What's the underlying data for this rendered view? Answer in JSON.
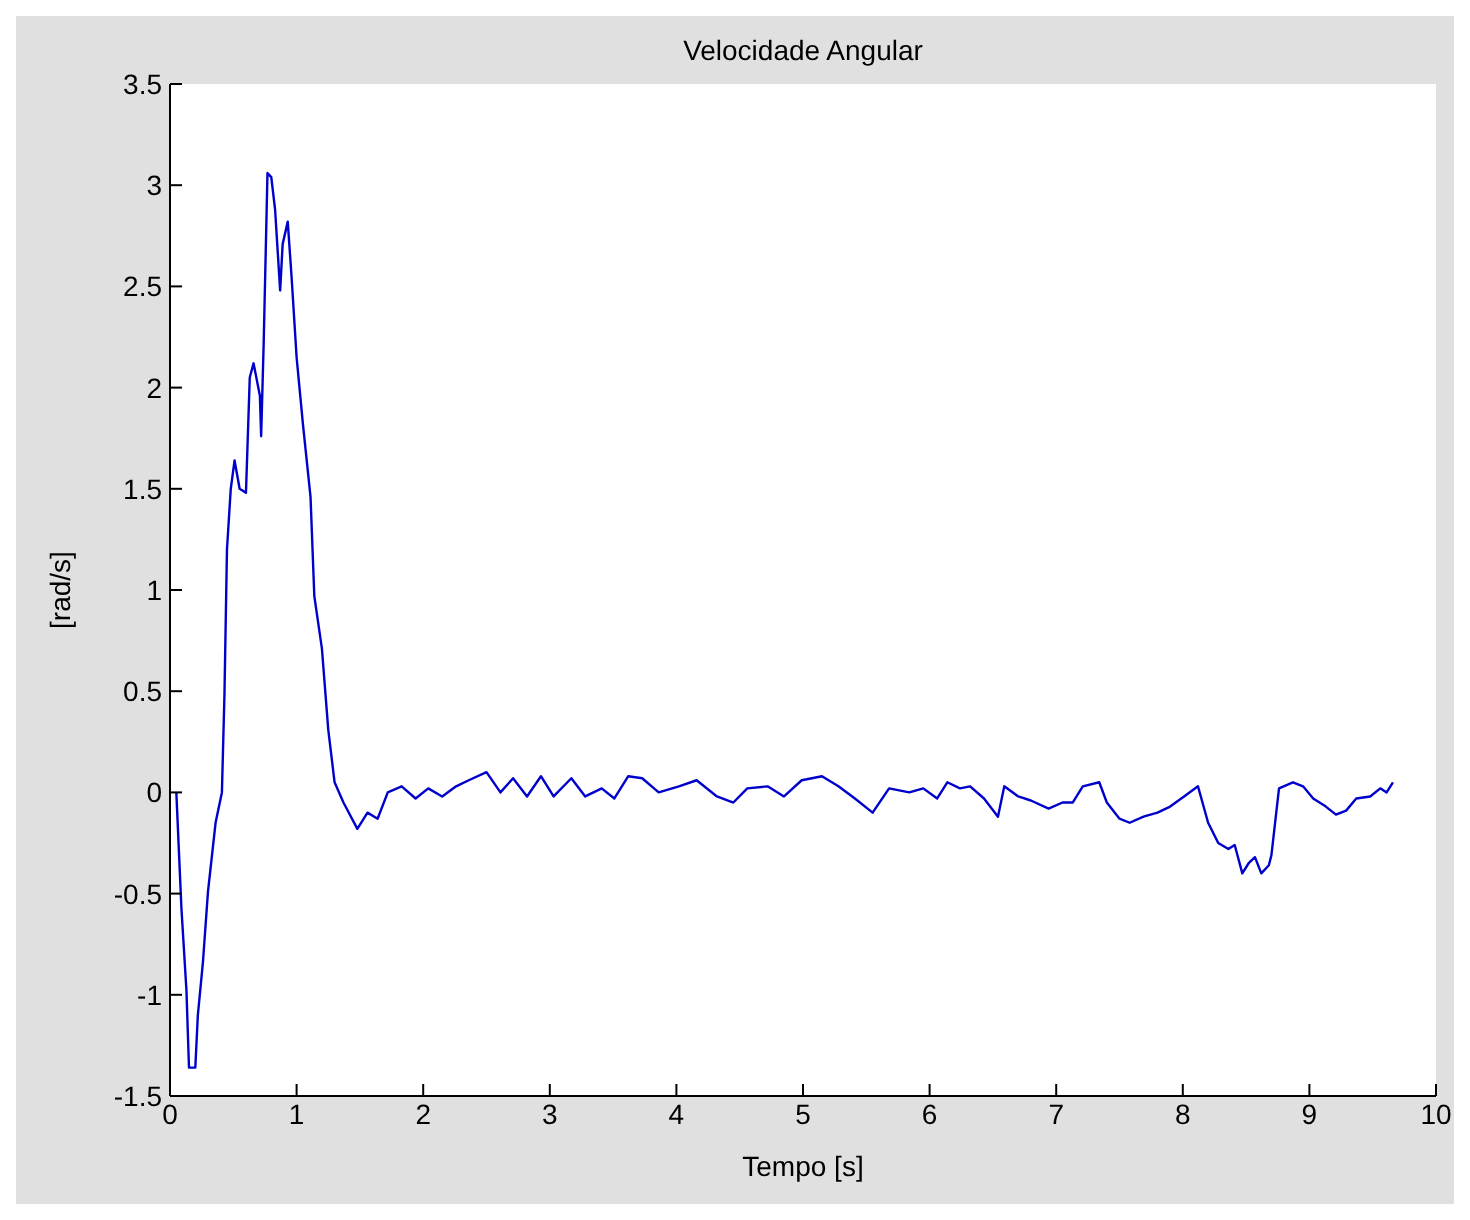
{
  "chart_data": {
    "type": "line",
    "title": "Velocidade Angular",
    "xlabel": "Tempo [s]",
    "ylabel": "[rad/s]",
    "xlim": [
      0,
      10
    ],
    "xticks": [
      0,
      1,
      2,
      3,
      4,
      5,
      6,
      7,
      8,
      9,
      10
    ],
    "ylim": [
      -1.5,
      3.5
    ],
    "yticks": [
      -1.5,
      -1,
      -0.5,
      0,
      0.5,
      1,
      1.5,
      2,
      2.5,
      3,
      3.5
    ],
    "grid": false,
    "marker": "none",
    "line_style": "solid",
    "series": [
      {
        "color": "#0000cc",
        "x": [
          0.05,
          0.09,
          0.13,
          0.15,
          0.2,
          0.22,
          0.26,
          0.3,
          0.36,
          0.41,
          0.43,
          0.45,
          0.48,
          0.51,
          0.55,
          0.6,
          0.63,
          0.66,
          0.71,
          0.72,
          0.74,
          0.77,
          0.8,
          0.83,
          0.87,
          0.89,
          0.93,
          0.96,
          1.0,
          1.05,
          1.11,
          1.14,
          1.2,
          1.25,
          1.3,
          1.37,
          1.48,
          1.56,
          1.64,
          1.72,
          1.83,
          1.94,
          2.04,
          2.15,
          2.26,
          2.36,
          2.5,
          2.61,
          2.71,
          2.82,
          2.93,
          3.03,
          3.17,
          3.28,
          3.41,
          3.51,
          3.62,
          3.73,
          3.86,
          4.02,
          4.16,
          4.32,
          4.45,
          4.56,
          4.72,
          4.85,
          4.99,
          5.15,
          5.28,
          5.41,
          5.55,
          5.68,
          5.84,
          5.95,
          6.06,
          6.14,
          6.24,
          6.32,
          6.43,
          6.54,
          6.59,
          6.7,
          6.8,
          6.94,
          7.05,
          7.13,
          7.21,
          7.34,
          7.4,
          7.5,
          7.58,
          7.69,
          7.8,
          7.9,
          8.01,
          8.12,
          8.2,
          8.28,
          8.36,
          8.41,
          8.47,
          8.52,
          8.57,
          8.62,
          8.68,
          8.7,
          8.76,
          8.87,
          8.95,
          9.03,
          9.13,
          9.21,
          9.29,
          9.37,
          9.48,
          9.56,
          9.61,
          9.66
        ],
        "values": [
          0,
          -0.57,
          -0.98,
          -1.36,
          -1.36,
          -1.1,
          -0.84,
          -0.49,
          -0.15,
          0,
          0.48,
          1.2,
          1.5,
          1.64,
          1.5,
          1.48,
          2.05,
          2.12,
          1.96,
          1.76,
          2.22,
          3.06,
          3.04,
          2.88,
          2.48,
          2.71,
          2.82,
          2.55,
          2.15,
          1.82,
          1.46,
          0.97,
          0.71,
          0.31,
          0.05,
          -0.05,
          -0.18,
          -0.1,
          -0.13,
          0,
          0.03,
          -0.03,
          0.02,
          -0.02,
          0.03,
          0.06,
          0.1,
          0,
          0.07,
          -0.02,
          0.08,
          -0.02,
          0.07,
          -0.02,
          0.02,
          -0.03,
          0.08,
          0.07,
          0,
          0.03,
          0.06,
          -0.02,
          -0.05,
          0.02,
          0.03,
          -0.02,
          0.06,
          0.08,
          0.03,
          -0.03,
          -0.1,
          0.02,
          0,
          0.02,
          -0.03,
          0.05,
          0.02,
          0.03,
          -0.03,
          -0.12,
          0.03,
          -0.02,
          -0.04,
          -0.08,
          -0.05,
          -0.05,
          0.03,
          0.05,
          -0.05,
          -0.13,
          -0.15,
          -0.12,
          -0.1,
          -0.07,
          -0.02,
          0.03,
          -0.15,
          -0.25,
          -0.28,
          -0.26,
          -0.4,
          -0.35,
          -0.32,
          -0.4,
          -0.36,
          -0.31,
          0.02,
          0.05,
          0.03,
          -0.03,
          -0.07,
          -0.11,
          -0.09,
          -0.03,
          -0.02,
          0.02,
          0,
          0.05
        ]
      }
    ]
  }
}
